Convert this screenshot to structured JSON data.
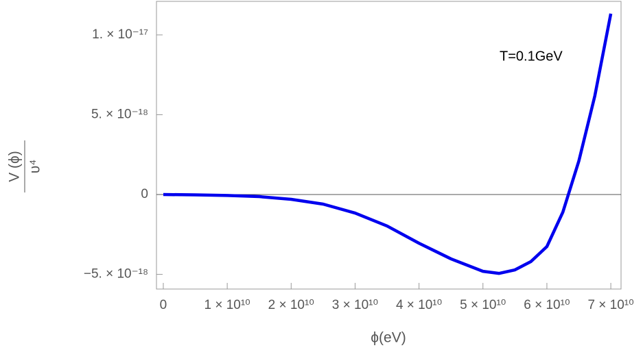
{
  "chart_data": {
    "type": "line",
    "annotation": "T=0.1GeV",
    "x_label": "ϕ(eV)",
    "y_label": {
      "numerator": "V (ϕ)",
      "denominator": "υ⁴"
    },
    "x": [
      0,
      5000000000.0,
      10000000000.0,
      15000000000.0,
      20000000000.0,
      25000000000.0,
      30000000000.0,
      35000000000.0,
      40000000000.0,
      45000000000.0,
      50000000000.0,
      52500000000.0,
      55000000000.0,
      57500000000.0,
      60000000000.0,
      62500000000.0,
      65000000000.0,
      67500000000.0,
      70000000000.0
    ],
    "series": [
      {
        "color": "#0000ee",
        "values": [
          0,
          -2e-20,
          -6e-20,
          -1.3e-19,
          -3e-19,
          -6e-19,
          -1.16e-18,
          -1.97e-18,
          -3.05e-18,
          -4.03e-18,
          -4.81e-18,
          -4.94e-18,
          -4.72e-18,
          -4.2e-18,
          -3.26e-18,
          -1.1e-18,
          2.1e-18,
          6.18e-18,
          1.133e-17
        ]
      }
    ],
    "xlim": [
      -1070000000.0,
      71600000000.0
    ],
    "ylim": [
      -5.92e-18,
      1.21e-17
    ],
    "xticks": [
      0,
      {
        "value": 10000000000.0,
        "label": "1 × 10¹⁰"
      },
      {
        "value": 20000000000.0,
        "label": "2 × 10¹⁰"
      },
      {
        "value": 30000000000.0,
        "label": "3 × 10¹⁰"
      },
      {
        "value": 40000000000.0,
        "label": "4 × 10¹⁰"
      },
      {
        "value": 50000000000.0,
        "label": "5 × 10¹⁰"
      },
      {
        "value": 60000000000.0,
        "label": "6 × 10¹⁰"
      },
      {
        "value": 70000000000.0,
        "label": "7 × 10¹⁰"
      }
    ],
    "yticks": [
      {
        "value": -5e-18,
        "label": "−5. × 10⁻¹⁸"
      },
      0,
      {
        "value": 5e-18,
        "label": "5. × 10⁻¹⁸"
      },
      {
        "value": 1e-17,
        "label": "1. × 10⁻¹⁷"
      }
    ],
    "zero_line": true
  }
}
